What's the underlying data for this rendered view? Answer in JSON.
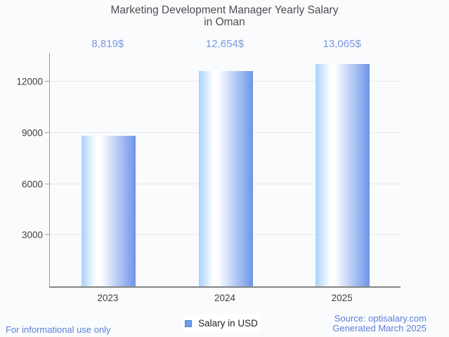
{
  "header": {
    "title_lines": [
      "Marketing Development Manager Yearly Salary",
      "in Oman"
    ]
  },
  "chart_data": {
    "type": "bar",
    "title": "Marketing Development Manager Yearly Salary in Oman",
    "categories": [
      "2023",
      "2024",
      "2025"
    ],
    "values": [
      8819,
      12654,
      13065
    ],
    "value_labels": [
      "8,819$",
      "12,654$",
      "13,065$"
    ],
    "series": [
      {
        "name": "Salary in USD",
        "values": [
          8819,
          12654,
          13065
        ]
      }
    ],
    "xlabel": "",
    "ylabel": "",
    "ylim": [
      0,
      13790
    ],
    "yticks": [
      3000,
      6000,
      9000,
      12000
    ],
    "grid": true,
    "legend_position": "bottom-center",
    "colors": {
      "background": "#fafbfd",
      "gridline": "#e7e9eb",
      "axis": "#9b9b9b",
      "baseline": "#848484",
      "title": "#4e4e52",
      "tick_label": "#3f3f41",
      "value_label": "#7b97dd",
      "footer_link": "#5b80da",
      "bar_gradient_left": "#a8d2fa",
      "bar_gradient_mid": "#ffffff",
      "bar_gradient_right": "#6d95e9",
      "legend_swatch": "#6d9eea",
      "legend_swatch_border": "#4a84d4",
      "legend_text": "#1f1f1f"
    }
  },
  "legend": {
    "label": "Salary in USD"
  },
  "footer": {
    "left_note": "For informational use only",
    "source": "Source: optisalary.com",
    "generated": "Generated March 2025"
  }
}
